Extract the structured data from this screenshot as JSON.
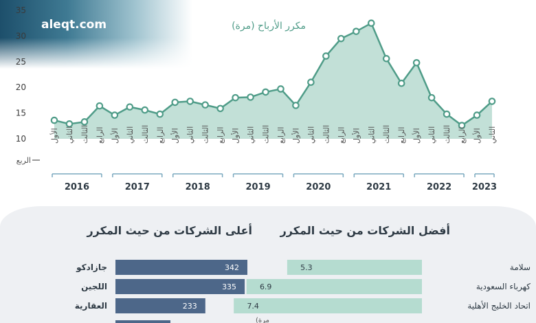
{
  "site": "aleqt.com",
  "chart_data": {
    "type": "area",
    "title": "مكرر الأرباح (مرة)",
    "x_axis_label": "الربع",
    "ylim": [
      10,
      35
    ],
    "yticks": [
      10,
      15,
      20,
      25,
      30,
      35
    ],
    "quarter_labels": [
      "الأول",
      "الثاني",
      "الثالث",
      "الرابع"
    ],
    "years": [
      "2016",
      "2017",
      "2018",
      "2019",
      "2020",
      "2021",
      "2022",
      "2023"
    ],
    "x": [
      "2016 الأول",
      "2016 الثاني",
      "2016 الثالث",
      "2016 الرابع",
      "2017 الأول",
      "2017 الثاني",
      "2017 الثالث",
      "2017 الرابع",
      "2018 الأول",
      "2018 الثاني",
      "2018 الثالث",
      "2018 الرابع",
      "2019 الأول",
      "2019 الثاني",
      "2019 الثالث",
      "2019 الرابع",
      "2020 الأول",
      "2020 الثاني",
      "2020 الثالث",
      "2020 الرابع",
      "2021 الأول",
      "2021 الثاني",
      "2021 الثالث",
      "2021 الرابع",
      "2022 الأول",
      "2022 الثاني",
      "2022 الثالث",
      "2022 الرابع",
      "2023 الأول",
      "2023 الثاني"
    ],
    "values": [
      13.6,
      12.9,
      13.3,
      16.4,
      14.6,
      16.2,
      15.6,
      14.8,
      17.1,
      17.3,
      16.6,
      15.9,
      18.0,
      18.1,
      19.1,
      19.7,
      16.5,
      21.0,
      26.1,
      29.5,
      30.9,
      32.5,
      25.6,
      20.8,
      24.8,
      18.0,
      14.8,
      12.6,
      14.6,
      17.3
    ],
    "colors": {
      "line": "#4f9c88",
      "fill": "#b7dbd0",
      "point_fill": "#ffffff"
    }
  },
  "best_panel": {
    "title": "أفضل الشركات من حيث المكرر",
    "color": "#b5dcd0",
    "items": [
      {
        "name": "سلامة",
        "value": 5.3
      },
      {
        "name": "كهرباء السعودية",
        "value": 6.9
      },
      {
        "name": "اتحاد الخليج الأهلية",
        "value": 7.4
      }
    ]
  },
  "top_panel": {
    "title": "أعلى الشركات من حيث المكرر",
    "color": "#4d6789",
    "items": [
      {
        "name": "جازادكو",
        "value": 342
      },
      {
        "name": "اللجين",
        "value": 335
      },
      {
        "name": "العقارية",
        "value": 233
      }
    ],
    "unit_note": "(مرة"
  }
}
